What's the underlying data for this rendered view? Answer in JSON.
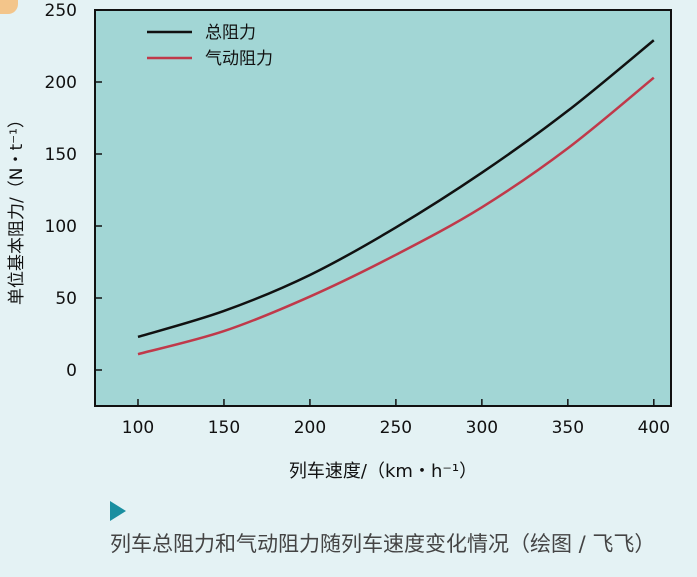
{
  "chart_data": {
    "type": "line",
    "xlabel": "列车速度/（km・h⁻¹）",
    "ylabel": "单位基本阻力/（N・t⁻¹）",
    "xlim": [
      75,
      410
    ],
    "ylim": [
      -25,
      250
    ],
    "xticks": [
      100,
      150,
      200,
      250,
      300,
      350,
      400
    ],
    "yticks": [
      0,
      50,
      100,
      150,
      200,
      250
    ],
    "x": [
      100,
      150,
      200,
      250,
      300,
      350,
      400
    ],
    "series": [
      {
        "name": "总阻力",
        "color": "#111111",
        "values": [
          23,
          41,
          66,
          99,
          137,
          180,
          229
        ]
      },
      {
        "name": "气动阻力",
        "color": "#c0394a",
        "values": [
          11,
          27,
          51,
          80,
          113,
          154,
          203
        ]
      }
    ],
    "plot_bg": "#a2d6d5",
    "legend": "top-left",
    "grid": false
  },
  "caption": "列车总阻力和气动阻力随列车速度变化情况（绘图 / 飞飞）"
}
